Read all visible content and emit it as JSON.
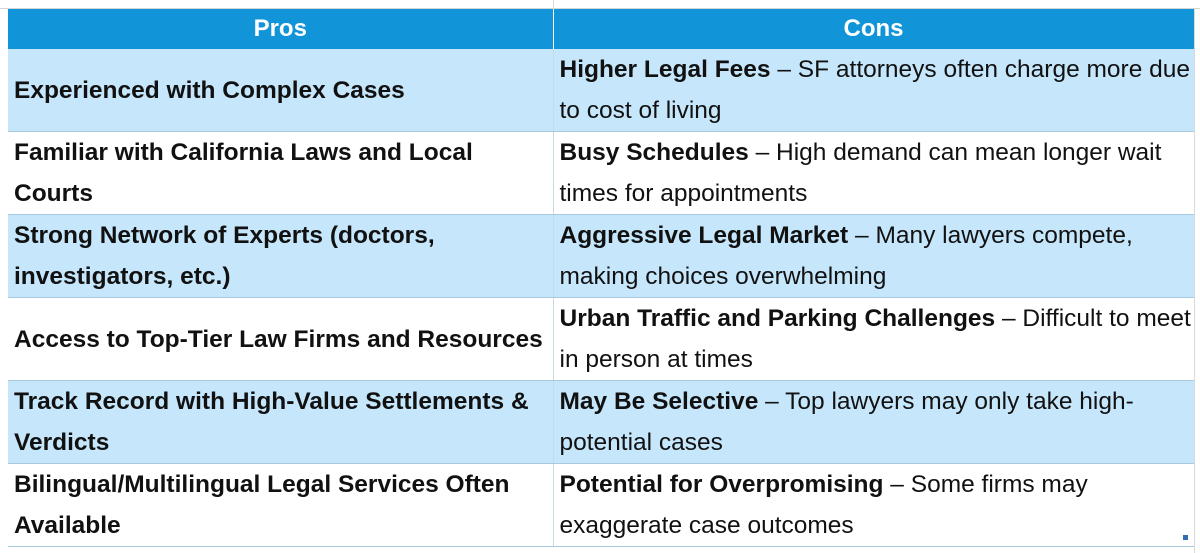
{
  "table": {
    "headers": {
      "pros": "Pros",
      "cons": "Cons"
    },
    "rows": [
      {
        "pro": "Experienced with Complex Cases",
        "con_title": "Higher Legal Fees",
        "con_dash": " – ",
        "con_desc": "SF attorneys often charge more due to cost of living"
      },
      {
        "pro": "Familiar with California Laws and Local Courts",
        "con_title": "Busy Schedules",
        "con_dash": " – ",
        "con_desc": "High demand can mean longer wait times for appointments"
      },
      {
        "pro": "Strong Network of Experts (doctors, investigators, etc.)",
        "con_title": "Aggressive Legal Market",
        "con_dash": " – ",
        "con_desc": "Many lawyers compete, making choices overwhelming"
      },
      {
        "pro": "Access to Top-Tier Law Firms and Resources",
        "con_title": "Urban Traffic and Parking Challenges",
        "con_dash": " – ",
        "con_desc": "Difficult to meet in person at times"
      },
      {
        "pro": "Track Record with High-Value Settlements & Verdicts",
        "con_title": "May Be Selective",
        "con_dash": " – ",
        "con_desc": "Top lawyers may only take high-potential cases"
      },
      {
        "pro": "Bilingual/Multilingual Legal Services Often Available",
        "con_title": "Potential for Overpromising",
        "con_dash": " – ",
        "con_desc": "Some firms may exaggerate case outcomes"
      }
    ]
  },
  "colors": {
    "header_bg": "#1295d8",
    "header_text": "#ffffff",
    "band_light_blue": "#c6e7fb",
    "band_white": "#ffffff",
    "resize_handle": "#2f6fb0"
  }
}
